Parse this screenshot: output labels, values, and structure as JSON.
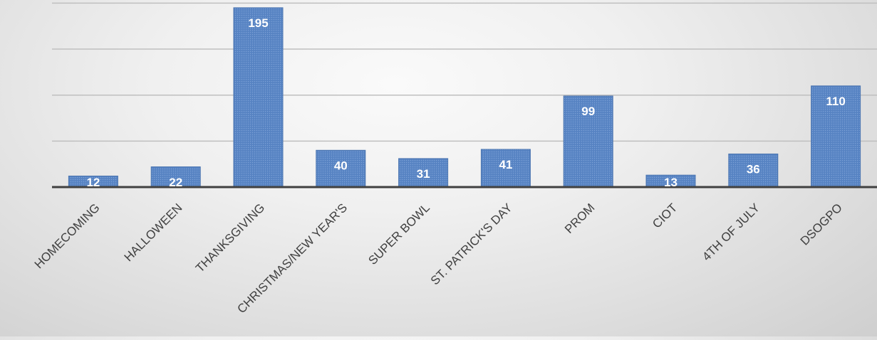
{
  "chart_data": {
    "type": "bar",
    "categories": [
      "HOMECOMING",
      "HALLOWEEN",
      "THANKSGIVING",
      "CHRISTMAS/NEW YEAR'S",
      "SUPER BOWL",
      "ST. PATRICK'S DAY",
      "PROM",
      "CIOT",
      "4TH OF JULY",
      "DSOGPO"
    ],
    "values": [
      12,
      22,
      195,
      40,
      31,
      41,
      99,
      13,
      36,
      110
    ],
    "title": "",
    "xlabel": "",
    "ylabel": "",
    "ylim": [
      0,
      200
    ],
    "grid": true,
    "data_labels": true,
    "legend": "none",
    "colors": {
      "bar": "#5b87c6",
      "bar_edge": "#4a74b0",
      "axis": "#404040",
      "grid": "#bfbfbf"
    }
  }
}
